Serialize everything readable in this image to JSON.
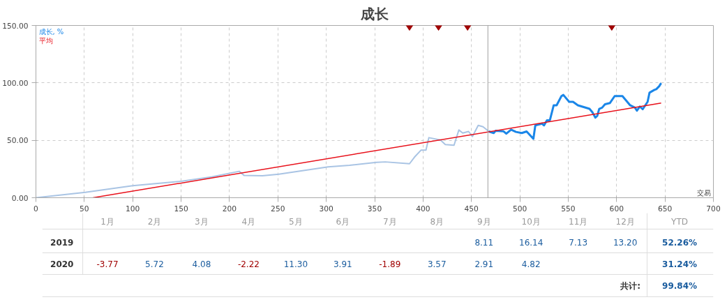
{
  "chart_data": [
    {
      "type": "line",
      "title": "成长",
      "xlabel": "交易",
      "xlim": [
        0,
        700
      ],
      "ylim": [
        0,
        150
      ],
      "xticks": [
        0,
        50,
        100,
        150,
        200,
        250,
        300,
        350,
        400,
        450,
        500,
        550,
        600,
        650,
        700
      ],
      "yticks": [
        {
          "value": 0,
          "label": "0.00"
        },
        {
          "value": 50,
          "label": "50.00"
        },
        {
          "value": 100,
          "label": "100.00"
        },
        {
          "value": 150,
          "label": "150.00"
        }
      ],
      "grid": true,
      "legend": "top left",
      "line_style": "solid",
      "series": [
        {
          "color": "#a9c4e4",
          "x": [
            0,
            51,
            100,
            151,
            182,
            210,
            215,
            234,
            251,
            302,
            324,
            352,
            361,
            386,
            391,
            398,
            403,
            406,
            418,
            423,
            432,
            437,
            441,
            447,
            451,
            457,
            462,
            468
          ],
          "values": [
            0,
            4.7,
            10.5,
            14.4,
            18.2,
            23,
            19.5,
            19.2,
            20.5,
            26.9,
            28.2,
            30.8,
            31.2,
            29.6,
            35.2,
            41.5,
            41.5,
            52.3,
            50.2,
            46.3,
            45.7,
            59,
            56.3,
            57.7,
            53.3,
            63,
            61.8,
            57.7
          ]
        },
        {
          "name": "成长, %",
          "color": "#1a86e8",
          "x": [
            468,
            473,
            475,
            483,
            486,
            491,
            496,
            502,
            507,
            514,
            516,
            523,
            525,
            528,
            531,
            535,
            538,
            543,
            545,
            551,
            555,
            560,
            572,
            575,
            578,
            580,
            582,
            585,
            588,
            593,
            598,
            602,
            606,
            614,
            619,
            621,
            624,
            627,
            632,
            634,
            639,
            641,
            644,
            646
          ],
          "values": [
            57.7,
            56.3,
            58.3,
            57.9,
            55.8,
            59.3,
            57.3,
            56.3,
            57.7,
            51.3,
            63,
            64.5,
            63,
            67.4,
            67.4,
            80.5,
            80.5,
            88.5,
            89.5,
            83.5,
            83.5,
            80.5,
            77.4,
            74.4,
            69.8,
            71.3,
            77.4,
            78.4,
            81.4,
            82.4,
            88.5,
            88.5,
            88.5,
            80.5,
            78.4,
            75.8,
            79.4,
            77.1,
            83.5,
            91.5,
            93.9,
            94.5,
            97.1,
            99.8
          ]
        },
        {
          "name": "平均",
          "color": "#e8101a",
          "x": [
            59,
            646
          ],
          "values": [
            0,
            82.4
          ]
        },
        {
          "type": "scatter",
          "marker": "diamond",
          "color": "#a00000",
          "x": [
            386,
            416,
            446,
            595
          ],
          "values": [
            150,
            150,
            150,
            150
          ]
        }
      ],
      "ref_lines": [
        {
          "axis": "x",
          "value": 467,
          "color": "#a0a0a0"
        }
      ]
    },
    {
      "type": "heatmap",
      "categories": [
        "1月",
        "2月",
        "3月",
        "4月",
        "5月",
        "6月",
        "7月",
        "8月",
        "9月",
        "10月",
        "11月",
        "12月",
        "YTD"
      ],
      "y_categories": [
        "2019",
        "2020"
      ],
      "cells": [
        [
          null,
          null,
          null,
          null,
          null,
          null,
          null,
          null,
          8.11,
          16.14,
          7.13,
          13.2,
          52.26
        ],
        [
          -3.77,
          5.72,
          4.08,
          -2.22,
          11.3,
          3.91,
          -1.89,
          3.57,
          2.91,
          4.82,
          null,
          null,
          31.24
        ]
      ],
      "cell_labels": [
        [
          null,
          null,
          null,
          null,
          null,
          null,
          null,
          null,
          "8.11",
          "16.14",
          "7.13",
          "13.20",
          "52.26%"
        ],
        [
          "-3.77",
          "5.72",
          "4.08",
          "-2.22",
          "11.30",
          "3.91",
          "-1.89",
          "3.57",
          "2.91",
          "4.82",
          null,
          null,
          "31.24%"
        ]
      ],
      "annotations": [
        "共计:",
        "99.84%"
      ]
    }
  ]
}
